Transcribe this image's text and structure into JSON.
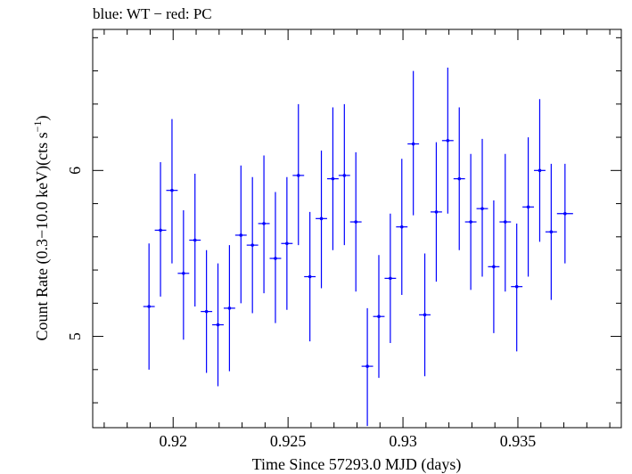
{
  "chart_data": {
    "type": "scatter",
    "title": "blue: WT − red: PC",
    "xlabel": "Time Since 57293.0 MJD (days)",
    "ylabel_main": "Count Rate (0.3−10.0 keV)(cts s",
    "ylabel_sup": "−1",
    "ylabel_end": ")",
    "xlim": [
      0.9165,
      0.9395
    ],
    "ylim": [
      4.45,
      6.85
    ],
    "xticks": [
      0.92,
      0.925,
      0.93,
      0.935
    ],
    "xtick_labels": [
      "0.92",
      "0.925",
      "0.93",
      "0.935"
    ],
    "yticks": [
      5,
      6
    ],
    "ytick_labels": [
      "5",
      "6"
    ],
    "grid": false,
    "series": [
      {
        "color": "#0000ff",
        "points": [
          {
            "x": 0.91895,
            "xerr": 0.00025,
            "y": 5.18,
            "ylo": 4.8,
            "yhi": 5.56
          },
          {
            "x": 0.91945,
            "xerr": 0.00025,
            "y": 5.64,
            "ylo": 5.24,
            "yhi": 6.05
          },
          {
            "x": 0.91995,
            "xerr": 0.00025,
            "y": 5.88,
            "ylo": 5.44,
            "yhi": 6.31
          },
          {
            "x": 0.92045,
            "xerr": 0.00025,
            "y": 5.38,
            "ylo": 4.98,
            "yhi": 5.76
          },
          {
            "x": 0.92095,
            "xerr": 0.00025,
            "y": 5.58,
            "ylo": 5.18,
            "yhi": 5.98
          },
          {
            "x": 0.92145,
            "xerr": 0.00025,
            "y": 5.15,
            "ylo": 4.78,
            "yhi": 5.52
          },
          {
            "x": 0.92195,
            "xerr": 0.00025,
            "y": 5.07,
            "ylo": 4.7,
            "yhi": 5.44
          },
          {
            "x": 0.92245,
            "xerr": 0.00025,
            "y": 5.17,
            "ylo": 4.79,
            "yhi": 5.55
          },
          {
            "x": 0.92295,
            "xerr": 0.00025,
            "y": 5.61,
            "ylo": 5.2,
            "yhi": 6.03
          },
          {
            "x": 0.92345,
            "xerr": 0.00025,
            "y": 5.55,
            "ylo": 5.14,
            "yhi": 5.96
          },
          {
            "x": 0.92395,
            "xerr": 0.00025,
            "y": 5.68,
            "ylo": 5.26,
            "yhi": 6.09
          },
          {
            "x": 0.92445,
            "xerr": 0.00025,
            "y": 5.47,
            "ylo": 5.08,
            "yhi": 5.87
          },
          {
            "x": 0.92495,
            "xerr": 0.00025,
            "y": 5.56,
            "ylo": 5.16,
            "yhi": 5.96
          },
          {
            "x": 0.92545,
            "xerr": 0.00025,
            "y": 5.97,
            "ylo": 5.55,
            "yhi": 6.4
          },
          {
            "x": 0.92595,
            "xerr": 0.00025,
            "y": 5.36,
            "ylo": 4.97,
            "yhi": 5.75
          },
          {
            "x": 0.92645,
            "xerr": 0.00025,
            "y": 5.71,
            "ylo": 5.29,
            "yhi": 6.12
          },
          {
            "x": 0.92695,
            "xerr": 0.00025,
            "y": 5.95,
            "ylo": 5.52,
            "yhi": 6.38
          },
          {
            "x": 0.92745,
            "xerr": 0.00025,
            "y": 5.97,
            "ylo": 5.55,
            "yhi": 6.4
          },
          {
            "x": 0.92795,
            "xerr": 0.00025,
            "y": 5.69,
            "ylo": 5.27,
            "yhi": 6.11
          },
          {
            "x": 0.92845,
            "xerr": 0.00025,
            "y": 4.82,
            "ylo": 4.46,
            "yhi": 5.17
          },
          {
            "x": 0.92895,
            "xerr": 0.00025,
            "y": 5.12,
            "ylo": 4.75,
            "yhi": 5.49
          },
          {
            "x": 0.92945,
            "xerr": 0.00025,
            "y": 5.35,
            "ylo": 4.96,
            "yhi": 5.74
          },
          {
            "x": 0.92995,
            "xerr": 0.00025,
            "y": 5.66,
            "ylo": 5.25,
            "yhi": 6.07
          },
          {
            "x": 0.93045,
            "xerr": 0.00025,
            "y": 6.16,
            "ylo": 5.73,
            "yhi": 6.6
          },
          {
            "x": 0.93095,
            "xerr": 0.00025,
            "y": 5.13,
            "ylo": 4.76,
            "yhi": 5.5
          },
          {
            "x": 0.93145,
            "xerr": 0.00025,
            "y": 5.75,
            "ylo": 5.33,
            "yhi": 6.17
          },
          {
            "x": 0.93195,
            "xerr": 0.00025,
            "y": 6.18,
            "ylo": 5.74,
            "yhi": 6.62
          },
          {
            "x": 0.93245,
            "xerr": 0.00025,
            "y": 5.95,
            "ylo": 5.52,
            "yhi": 6.38
          },
          {
            "x": 0.93295,
            "xerr": 0.00025,
            "y": 5.69,
            "ylo": 5.28,
            "yhi": 6.1
          },
          {
            "x": 0.93345,
            "xerr": 0.00025,
            "y": 5.77,
            "ylo": 5.36,
            "yhi": 6.19
          },
          {
            "x": 0.93395,
            "xerr": 0.00025,
            "y": 5.42,
            "ylo": 5.02,
            "yhi": 5.82
          },
          {
            "x": 0.93445,
            "xerr": 0.00025,
            "y": 5.69,
            "ylo": 5.27,
            "yhi": 6.1
          },
          {
            "x": 0.93495,
            "xerr": 0.00025,
            "y": 5.3,
            "ylo": 4.91,
            "yhi": 5.68
          },
          {
            "x": 0.93545,
            "xerr": 0.00025,
            "y": 5.78,
            "ylo": 5.36,
            "yhi": 6.2
          },
          {
            "x": 0.93595,
            "xerr": 0.00025,
            "y": 6.0,
            "ylo": 5.57,
            "yhi": 6.43
          },
          {
            "x": 0.93645,
            "xerr": 0.00025,
            "y": 5.63,
            "ylo": 5.22,
            "yhi": 6.04
          },
          {
            "x": 0.93705,
            "xerr": 0.00035,
            "y": 5.74,
            "ylo": 5.44,
            "yhi": 6.04
          }
        ]
      }
    ]
  }
}
